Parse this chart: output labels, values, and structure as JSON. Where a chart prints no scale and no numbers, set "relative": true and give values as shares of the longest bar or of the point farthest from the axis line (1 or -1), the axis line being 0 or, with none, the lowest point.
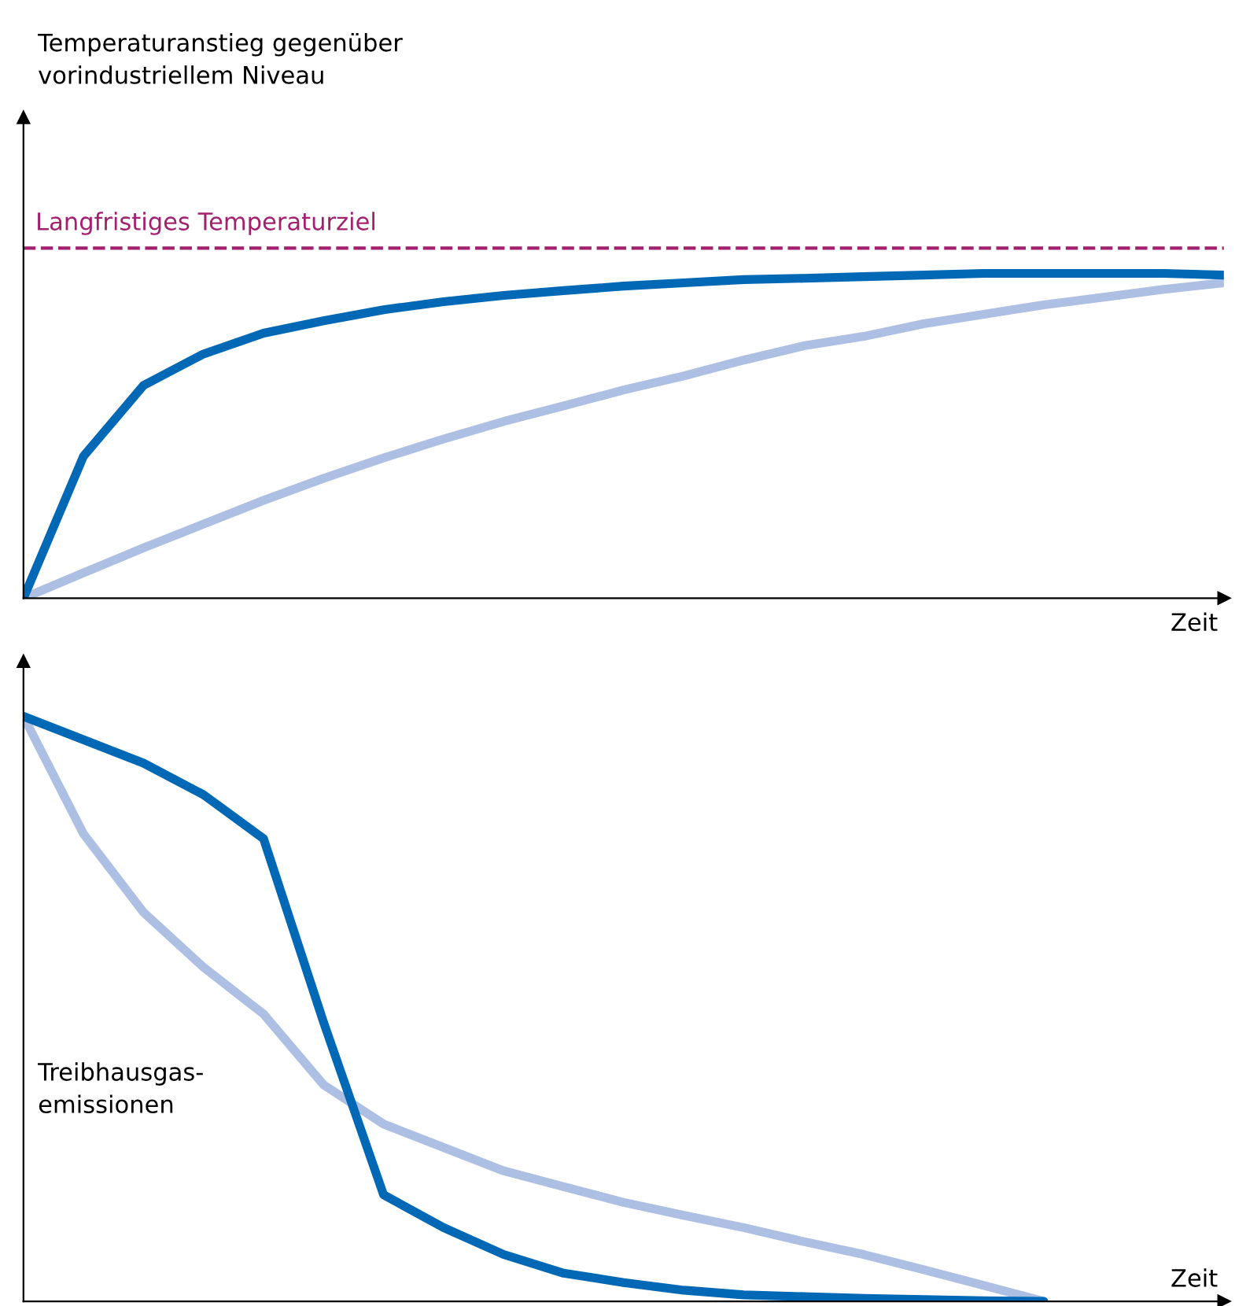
{
  "chart_data": [
    {
      "type": "line",
      "relative": true,
      "ylabel": "Temperaturanstieg gegenüber\nvorindustriellem Niveau",
      "xlabel": "Zeit",
      "tick_labels": false,
      "line_style": "solid",
      "marker": "none",
      "categories": [
        null,
        null,
        null,
        null,
        null,
        null,
        null,
        null,
        null,
        null,
        null,
        null,
        null,
        null,
        null,
        null,
        null,
        null,
        null,
        null,
        null
      ],
      "series": [
        {
          "color": "#adbfe3",
          "values": [
            0,
            0.078,
            0.155,
            0.228,
            0.301,
            0.369,
            0.432,
            0.49,
            0.544,
            0.592,
            0.641,
            0.684,
            0.733,
            0.777,
            0.806,
            0.845,
            0.874,
            0.903,
            0.927,
            0.951,
            0.971
          ]
        },
        {
          "color": "#0068b4",
          "values": [
            0,
            0.437,
            0.655,
            0.752,
            0.816,
            0.854,
            0.888,
            0.913,
            0.932,
            0.947,
            0.961,
            0.971,
            0.981,
            0.985,
            0.99,
            0.995,
            1,
            1,
            1,
            1,
            0.995
          ]
        }
      ],
      "ref_lines": [
        {
          "axis": "y",
          "value": 1.078,
          "label": "Langfristiges Temperaturziel",
          "color": "#a3206e",
          "line_style": "dashed"
        }
      ]
    },
    {
      "type": "line",
      "relative": true,
      "ylabel": "Treibhausgas-\nemissionen",
      "xlabel": "Zeit",
      "tick_labels": false,
      "line_style": "solid",
      "marker": "none",
      "categories": [
        null,
        null,
        null,
        null,
        null,
        null,
        null,
        null,
        null,
        null,
        null,
        null,
        null,
        null,
        null,
        null,
        null,
        null,
        null,
        null,
        null
      ],
      "series": [
        {
          "color": "#adbfe3",
          "values": [
            1,
            0.799,
            0.665,
            0.571,
            0.491,
            0.37,
            0.303,
            0.263,
            0.223,
            0.196,
            0.169,
            0.147,
            0.126,
            0.102,
            0.08,
            0.054,
            0.027,
            0,
            null,
            null,
            null
          ]
        },
        {
          "color": "#0068b4",
          "values": [
            1,
            0.96,
            0.92,
            0.866,
            0.791,
            0.477,
            0.182,
            0.126,
            0.08,
            0.048,
            0.032,
            0.019,
            0.011,
            0.008,
            0.005,
            0.003,
            0.001,
            0,
            null,
            null,
            null
          ]
        }
      ]
    }
  ]
}
